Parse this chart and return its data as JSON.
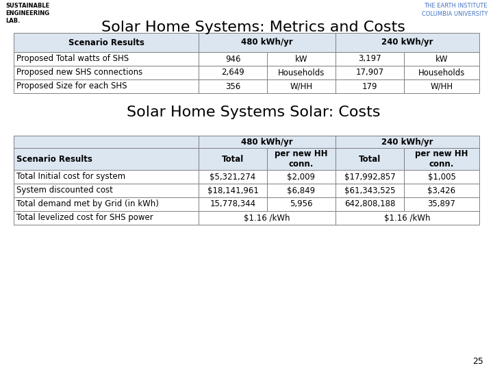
{
  "title1": "Solar Home Systems: Metrics and Costs",
  "title2": "Solar Home Systems Solar: Costs",
  "top_left_text": "SUSTAINABLE\nENGINEERING\nLAB.",
  "top_right_text": "THE EARTH INSTITUTE\nCOLUMBIA UNIVERSITY",
  "page_number": "25",
  "table1_rows": [
    [
      "Proposed Total watts of SHS",
      "946",
      "kW",
      "3,197",
      "kW"
    ],
    [
      "Proposed new SHS connections",
      "2,649",
      "Households",
      "17,907",
      "Households"
    ],
    [
      "Proposed Size for each SHS",
      "356",
      "W/HH",
      "179",
      "W/HH"
    ]
  ],
  "table2_rows": [
    [
      "Total Initial cost for system",
      "$5,321,274",
      "$2,009",
      "$17,992,857",
      "$1,005"
    ],
    [
      "System discounted cost",
      "$18,141,961",
      "$6,849",
      "$61,343,525",
      "$3,426"
    ],
    [
      "Total demand met by Grid (in kWh)",
      "15,778,344",
      "5,956",
      "642,808,188",
      "35,897"
    ],
    [
      "Total levelized cost for SHS power",
      "$1.16 /kWh",
      "",
      "$1.16 /kWh",
      ""
    ]
  ],
  "header_bg": "#dce6f1",
  "white_bg": "#ffffff",
  "border_color": "#7f7f7f",
  "title_fontsize": 16,
  "body_fontsize": 8.5,
  "header_fontsize": 8.5,
  "small_fontsize": 6
}
